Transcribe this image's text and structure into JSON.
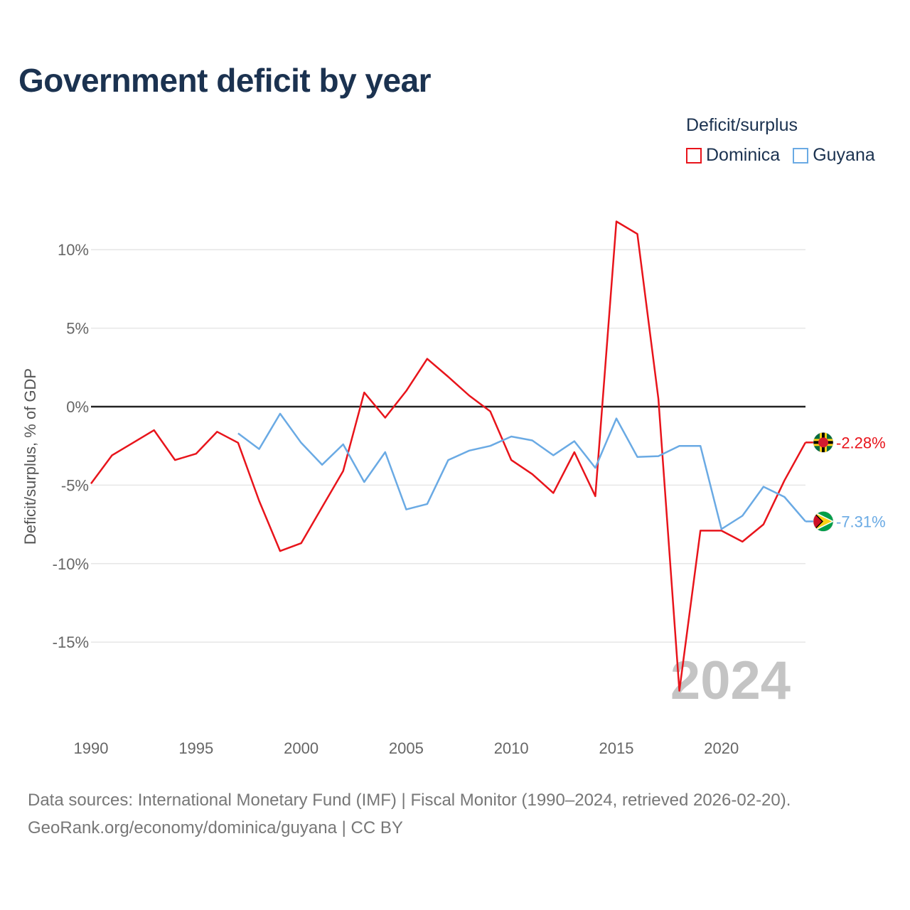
{
  "header": {
    "title": "Government deficit by year"
  },
  "legend": {
    "title": "Deficit/surplus",
    "items": [
      {
        "label": "Dominica",
        "color": "#e8141b"
      },
      {
        "label": "Guyana",
        "color": "#6aaae4"
      }
    ]
  },
  "footer": {
    "line1": "Data sources: International Monetary Fund (IMF) | Fiscal Monitor (1990–2024, retrieved 2026-02-20).",
    "line2": "GeoRank.org/economy/dominica/guyana | CC BY"
  },
  "chart_data": {
    "type": "line",
    "title": "Government deficit by year",
    "xlabel": "",
    "ylabel": "Deficit/surplus, % of GDP",
    "xlim": [
      1990,
      2024
    ],
    "ylim": [
      -20,
      12
    ],
    "x_ticks": [
      1990,
      1995,
      2000,
      2005,
      2010,
      2015,
      2020
    ],
    "x_tick_labels": [
      "1990",
      "1995",
      "2000",
      "2005",
      "2010",
      "2015",
      "2020"
    ],
    "y_ticks": [
      10,
      5,
      0,
      -5,
      -10,
      -15
    ],
    "y_tick_labels": [
      "10%",
      "5%",
      "0%",
      "-5%",
      "-10%",
      "-15%"
    ],
    "year_watermark": "2024",
    "series": [
      {
        "name": "Dominica",
        "color": "#e8141b",
        "end_label": "-2.28%",
        "flag_icon": "dominica-flag-icon",
        "x": [
          1990,
          1991,
          1992,
          1993,
          1994,
          1995,
          1996,
          1997,
          1998,
          1999,
          2000,
          2001,
          2002,
          2003,
          2004,
          2005,
          2006,
          2007,
          2008,
          2009,
          2010,
          2011,
          2012,
          2013,
          2014,
          2015,
          2016,
          2017,
          2018,
          2019,
          2020,
          2021,
          2022,
          2023,
          2024
        ],
        "values": [
          -4.9,
          -3.1,
          -2.3,
          -1.5,
          -3.4,
          -3.0,
          -1.6,
          -2.3,
          -6.0,
          -9.2,
          -8.7,
          -6.4,
          -4.1,
          0.9,
          -0.7,
          1.0,
          3.05,
          1.9,
          0.7,
          -0.3,
          -3.4,
          -4.3,
          -5.5,
          -2.9,
          -5.7,
          11.8,
          11.0,
          0.5,
          -18.1,
          -7.9,
          -7.9,
          -8.6,
          -7.5,
          -4.7,
          -2.28
        ]
      },
      {
        "name": "Guyana",
        "color": "#6aaae4",
        "end_label": "-7.31%",
        "flag_icon": "guyana-flag-icon",
        "x": [
          1997,
          1998,
          1999,
          2000,
          2001,
          2002,
          2003,
          2004,
          2005,
          2006,
          2007,
          2008,
          2009,
          2010,
          2011,
          2012,
          2013,
          2014,
          2015,
          2016,
          2017,
          2018,
          2019,
          2020,
          2021,
          2022,
          2023,
          2024
        ],
        "values": [
          -1.7,
          -2.7,
          -0.45,
          -2.3,
          -3.7,
          -2.4,
          -4.8,
          -2.9,
          -6.55,
          -6.2,
          -3.4,
          -2.8,
          -2.5,
          -1.9,
          -2.15,
          -3.1,
          -2.2,
          -3.9,
          -0.75,
          -3.2,
          -3.15,
          -2.5,
          -2.5,
          -7.8,
          -6.95,
          -5.1,
          -5.75,
          -7.31
        ]
      }
    ]
  }
}
